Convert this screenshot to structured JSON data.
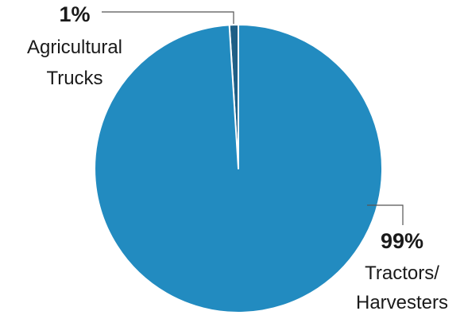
{
  "chart_data": {
    "type": "pie",
    "slices": [
      {
        "label_lines": [
          "Agricultural",
          "Trucks"
        ],
        "value_label": "1%",
        "value": 1,
        "color": "#1f5f86"
      },
      {
        "label_lines": [
          "Tractors/",
          "Harvesters"
        ],
        "value_label": "99%",
        "value": 99,
        "color": "#228bc0"
      }
    ],
    "title": "",
    "legend": "none",
    "slice_separator_color": "#ffffff"
  }
}
